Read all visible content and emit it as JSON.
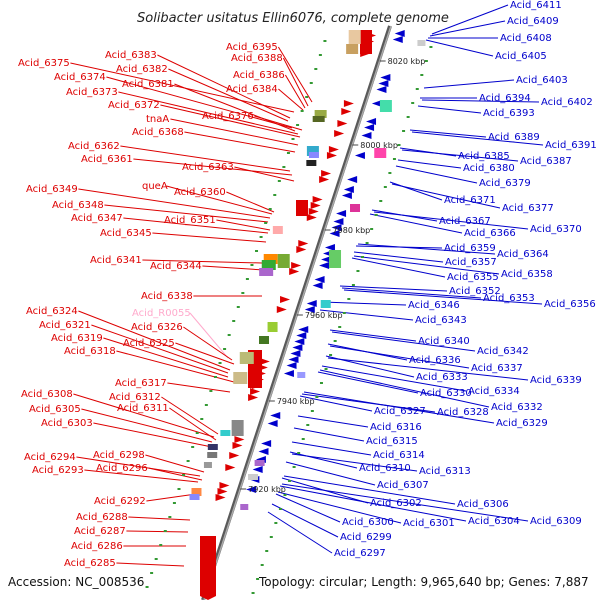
{
  "title": "Solibacter usitatus Ellin6076, complete genome",
  "accession": "Accession: NC_008536",
  "topology": "Topology: circular; Length: 9,965,640 bp; Genes: 7,887",
  "colors": {
    "forward": "#dd0000",
    "reverse": "#0000cc",
    "rna": "#ffaacc",
    "backbone": "#7a7a7a",
    "tick": "#339933"
  },
  "scale_labels": [
    "8020 kbp",
    "8000 kbp",
    "7980 kbp",
    "7960 kbp",
    "7940 kbp",
    "7920 kbp"
  ],
  "left_labels": [
    "Acid_6375",
    "Acid_6383",
    "Acid_6382",
    "Acid_6374",
    "Acid_6381",
    "Acid_6373",
    "Acid_6372",
    "Acid_6395",
    "Acid_6388",
    "Acid_6386",
    "Acid_6384",
    "Acid_6376",
    "tnaA",
    "Acid_6368",
    "Acid_6362",
    "Acid_6361",
    "Acid_6363",
    "Acid_6349",
    "Acid_6348",
    "queA",
    "Acid_6360",
    "Acid_6347",
    "Acid_6351",
    "Acid_6345",
    "Acid_6341",
    "Acid_6344",
    "Acid_6338",
    "Acid_6324",
    "Acid_R0055",
    "Acid_6321",
    "Acid_6326",
    "Acid_6319",
    "Acid_6325",
    "Acid_6318",
    "Acid_6317",
    "Acid_6308",
    "Acid_6312",
    "Acid_6305",
    "Acid_6311",
    "Acid_6303",
    "Acid_6294",
    "Acid_6298",
    "Acid_6293",
    "Acid_6296",
    "Acid_6292",
    "Acid_6288",
    "Acid_6287",
    "Acid_6286",
    "Acid_6285"
  ],
  "right_labels": [
    "Acid_6411",
    "Acid_6409",
    "Acid_6408",
    "Acid_6405",
    "Acid_6403",
    "Acid_6394",
    "Acid_6402",
    "Acid_6393",
    "Acid_6389",
    "Acid_6391",
    "Acid_6385",
    "Acid_6387",
    "Acid_6380",
    "Acid_6379",
    "Acid_6371",
    "Acid_6377",
    "Acid_6367",
    "Acid_6366",
    "Acid_6370",
    "Acid_6359",
    "Acid_6364",
    "Acid_6357",
    "Acid_6355",
    "Acid_6358",
    "Acid_6352",
    "Acid_6353",
    "Acid_6356",
    "Acid_6346",
    "Acid_6343",
    "Acid_6340",
    "Acid_6342",
    "Acid_6336",
    "Acid_6337",
    "Acid_6333",
    "Acid_6339",
    "Acid_6334",
    "Acid_6330",
    "Acid_6332",
    "Acid_6327",
    "Acid_6328",
    "Acid_6329",
    "Acid_6316",
    "Acid_6315",
    "Acid_6314",
    "Acid_6310",
    "Acid_6313",
    "Acid_6307",
    "Acid_6302",
    "Acid_6306",
    "Acid_6304",
    "Acid_6309",
    "Acid_6300",
    "Acid_6301",
    "Acid_6299",
    "Acid_6297"
  ]
}
